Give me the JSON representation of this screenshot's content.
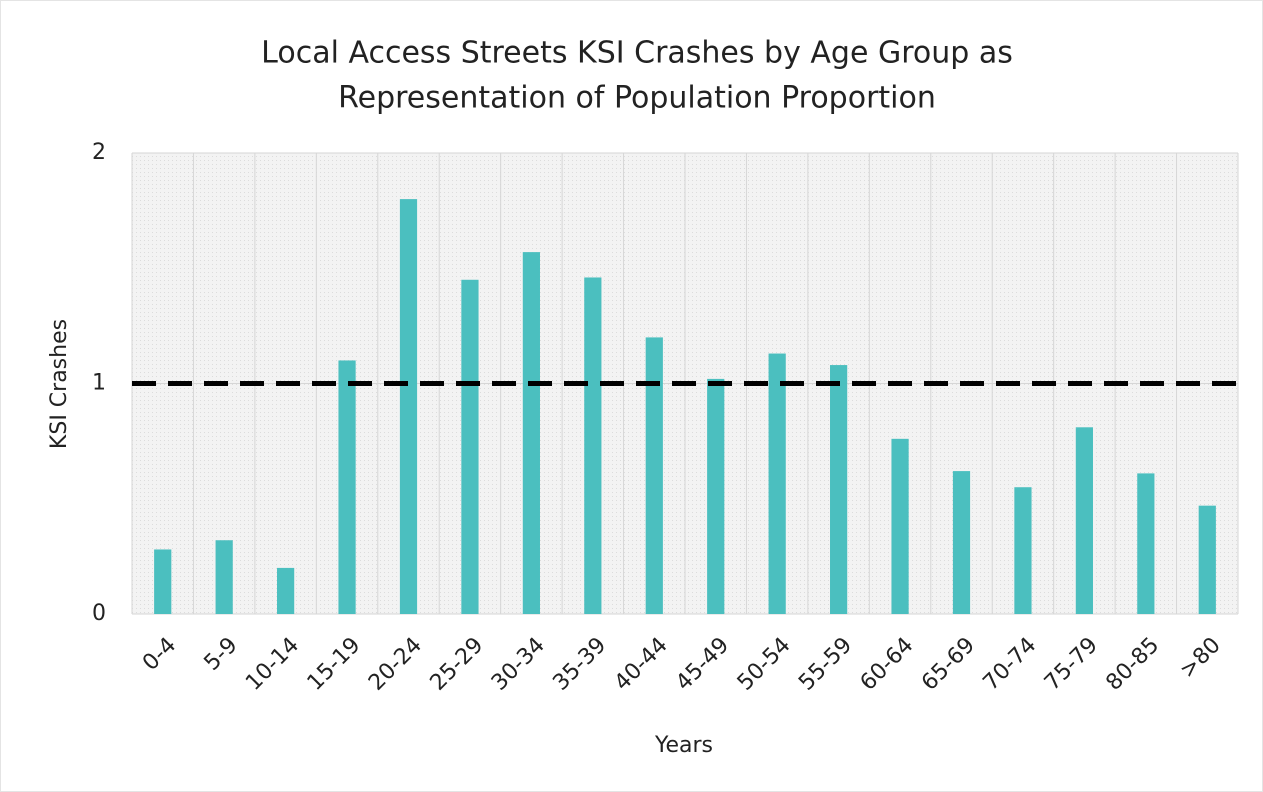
{
  "chart_data": {
    "type": "bar",
    "title": [
      "Local Access Streets KSI Crashes by Age Group as",
      "Representation of Population Proportion"
    ],
    "x_label": "Years",
    "y_label": "KSI Crashes",
    "categories": [
      "0-4",
      "5-9",
      "10-14",
      "15-19",
      "20-24",
      "25-29",
      "30-34",
      "35-39",
      "40-44",
      "45-49",
      "50-54",
      "55-59",
      "60-64",
      "65-69",
      "70-74",
      "75-79",
      "80-85",
      ">80"
    ],
    "values": [
      0.28,
      0.32,
      0.2,
      1.1,
      1.8,
      1.45,
      1.57,
      1.46,
      1.2,
      1.02,
      1.13,
      1.08,
      0.76,
      0.62,
      0.55,
      0.81,
      0.61,
      0.47
    ],
    "color": "#4bbfbf",
    "reference_line": {
      "value": 1,
      "color": "#000000"
    },
    "ylim": [
      0,
      2
    ],
    "yticks": [
      0,
      1,
      2
    ],
    "grid": true
  }
}
